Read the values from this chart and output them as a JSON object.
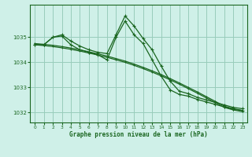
{
  "title": "Graphe pression niveau de la mer (hPa)",
  "bg_color": "#cff0e8",
  "grid_color": "#99ccbb",
  "line_color": "#1a6620",
  "xlim": [
    -0.5,
    23.5
  ],
  "ylim": [
    1031.6,
    1036.3
  ],
  "yticks": [
    1032,
    1033,
    1034,
    1035
  ],
  "xticks": [
    0,
    1,
    2,
    3,
    4,
    5,
    6,
    7,
    8,
    9,
    10,
    11,
    12,
    13,
    14,
    15,
    16,
    17,
    18,
    19,
    20,
    21,
    22,
    23
  ],
  "series_jagged": [
    1034.7,
    1034.7,
    1035.0,
    1035.1,
    1034.85,
    1034.65,
    1034.5,
    1034.4,
    1034.35,
    1035.1,
    1035.85,
    1035.45,
    1034.95,
    1034.5,
    1033.85,
    1033.25,
    1032.85,
    1032.75,
    1032.6,
    1032.5,
    1032.4,
    1032.3,
    1032.2,
    1032.15
  ],
  "series_jagged2": [
    1034.7,
    1034.7,
    1035.0,
    1035.05,
    1034.7,
    1034.5,
    1034.4,
    1034.3,
    1034.1,
    1035.0,
    1035.65,
    1035.1,
    1034.75,
    1034.1,
    1033.45,
    1032.9,
    1032.72,
    1032.65,
    1032.52,
    1032.42,
    1032.32,
    1032.22,
    1032.12,
    1032.08
  ],
  "series_straight1": [
    1034.75,
    1034.72,
    1034.68,
    1034.63,
    1034.57,
    1034.5,
    1034.42,
    1034.34,
    1034.25,
    1034.15,
    1034.05,
    1033.93,
    1033.8,
    1033.66,
    1033.51,
    1033.35,
    1033.18,
    1033.0,
    1032.82,
    1032.63,
    1032.44,
    1032.25,
    1032.15,
    1032.08
  ],
  "series_straight2": [
    1034.7,
    1034.67,
    1034.63,
    1034.58,
    1034.52,
    1034.45,
    1034.37,
    1034.29,
    1034.2,
    1034.1,
    1034.0,
    1033.88,
    1033.75,
    1033.61,
    1033.46,
    1033.3,
    1033.13,
    1032.95,
    1032.77,
    1032.58,
    1032.39,
    1032.2,
    1032.1,
    1032.03
  ]
}
